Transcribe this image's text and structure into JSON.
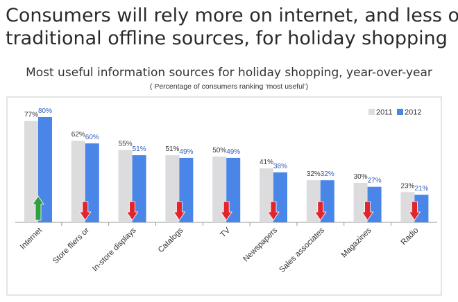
{
  "headline": {
    "line1": "Consumers will rely more on internet, and less on",
    "line2": "traditional offline sources, for holiday shopping"
  },
  "chart_data": {
    "type": "bar",
    "title": "Most useful information sources for holiday shopping, year-over-year",
    "subtitle": "( Percentage of consumers ranking ‘most useful’)",
    "categories": [
      "Internet",
      "Store fliers or",
      "In-store displays",
      "Catalogs",
      "TV",
      "Newspapers",
      "Sales associates",
      "Magazines",
      "Radio"
    ],
    "series": [
      {
        "name": "2011",
        "color": "#dcdcdf",
        "values": [
          77,
          62,
          55,
          51,
          50,
          41,
          32,
          30,
          23
        ],
        "labels": [
          "77%",
          "62%",
          "55%",
          "51%",
          "50%",
          "41%",
          "32%",
          "30%",
          "23%"
        ]
      },
      {
        "name": "2012",
        "color": "#4a86e8",
        "values": [
          80,
          60,
          51,
          49,
          49,
          38,
          32,
          27,
          21
        ],
        "labels": [
          "80%",
          "60%",
          "51%",
          "49%",
          "49%",
          "38%",
          "32%",
          "27%",
          "21%"
        ]
      }
    ],
    "trend": [
      "up",
      "down",
      "down",
      "down",
      "down",
      "down",
      "down",
      "down",
      "down"
    ],
    "trend_colors": {
      "up": "#2ea043",
      "down": "#e0262c"
    },
    "ylim": [
      0,
      90
    ],
    "legend_position": "top-right",
    "grid": false
  }
}
